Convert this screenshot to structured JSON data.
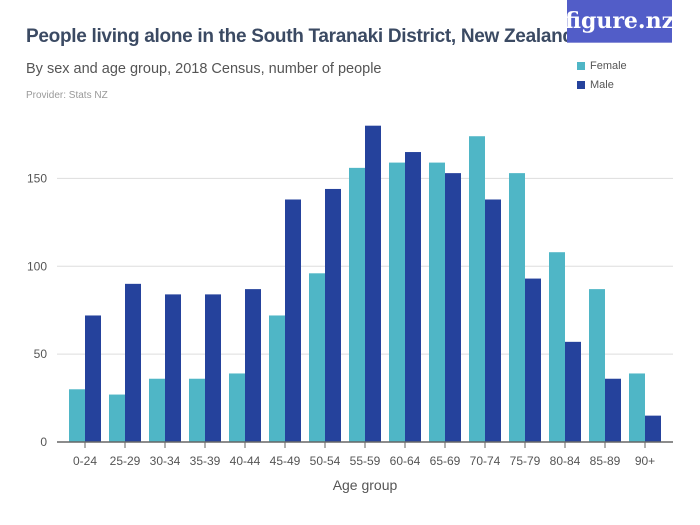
{
  "logo": "figure.nz",
  "chart_data": {
    "type": "bar",
    "title": "People living alone in the South Taranaki District, New Zealand",
    "subtitle": "By sex and age group, 2018 Census, number of people",
    "provider": "Provider: Stats NZ",
    "xlabel": "Age group",
    "ylabel": "",
    "ylim": [
      0,
      185
    ],
    "yticks": [
      0,
      50,
      100,
      150
    ],
    "grid": true,
    "legend_placement": "top-right",
    "categories": [
      "0-24",
      "25-29",
      "30-34",
      "35-39",
      "40-44",
      "45-49",
      "50-54",
      "55-59",
      "60-64",
      "65-69",
      "70-74",
      "75-79",
      "80-84",
      "85-89",
      "90+"
    ],
    "series": [
      {
        "name": "Female",
        "color": "#4fb6c6",
        "values": [
          30,
          27,
          36,
          36,
          39,
          72,
          96,
          156,
          159,
          159,
          174,
          153,
          108,
          87,
          39
        ]
      },
      {
        "name": "Male",
        "color": "#25429c",
        "values": [
          72,
          90,
          84,
          84,
          87,
          138,
          144,
          180,
          165,
          153,
          138,
          93,
          57,
          36,
          15
        ]
      }
    ]
  }
}
